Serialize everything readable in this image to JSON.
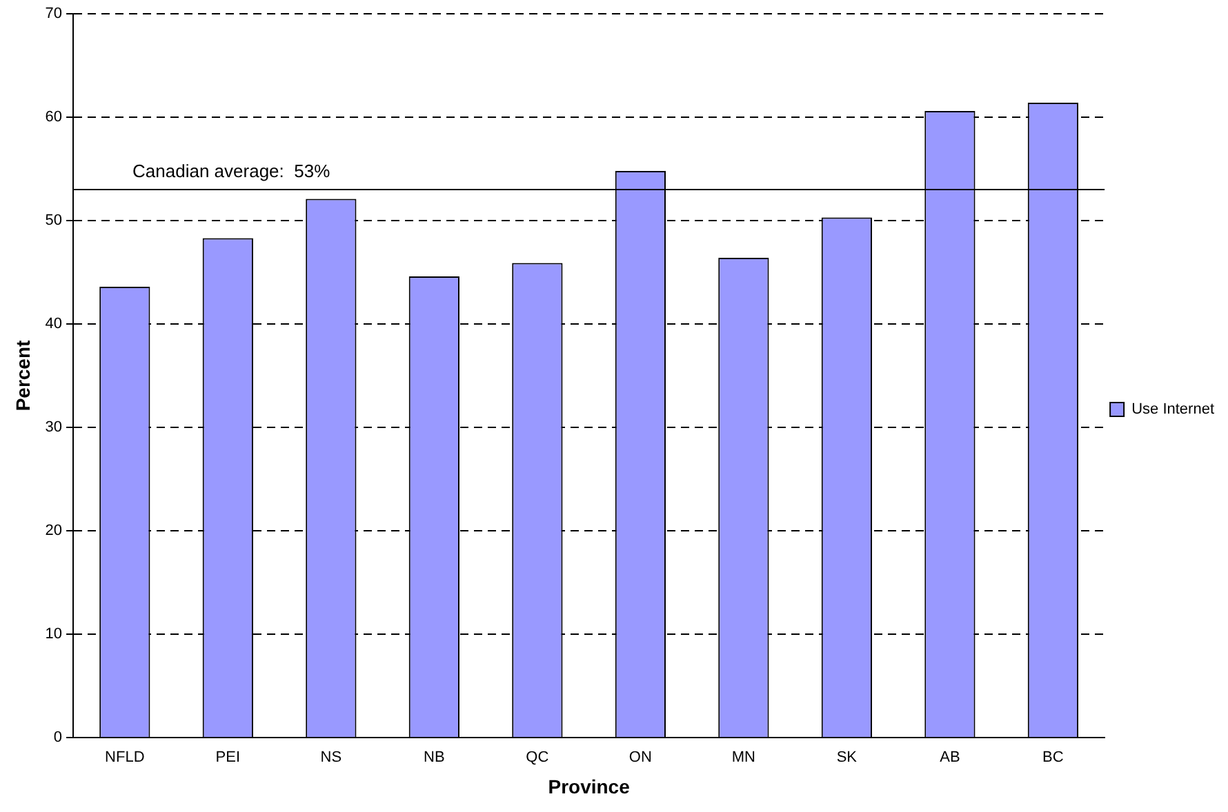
{
  "chart_data": {
    "type": "bar",
    "xlabel": "Province",
    "ylabel": "Percent",
    "categories": [
      "NFLD",
      "PEI",
      "NS",
      "NB",
      "QC",
      "ON",
      "MN",
      "SK",
      "AB",
      "BC"
    ],
    "series": [
      {
        "name": "Use Internet",
        "color": "#9999ff",
        "values": [
          43.6,
          48.3,
          52.1,
          44.6,
          45.9,
          54.8,
          46.4,
          50.3,
          60.6,
          61.4
        ]
      }
    ],
    "ylim": [
      0,
      70
    ],
    "yticks": [
      0,
      10,
      20,
      30,
      40,
      50,
      60,
      70
    ],
    "grid": "y",
    "legend": "right",
    "ref_lines": [
      {
        "axis": "y",
        "value": 53,
        "label": "Canadian average:  53%",
        "color": "#000000"
      }
    ]
  }
}
